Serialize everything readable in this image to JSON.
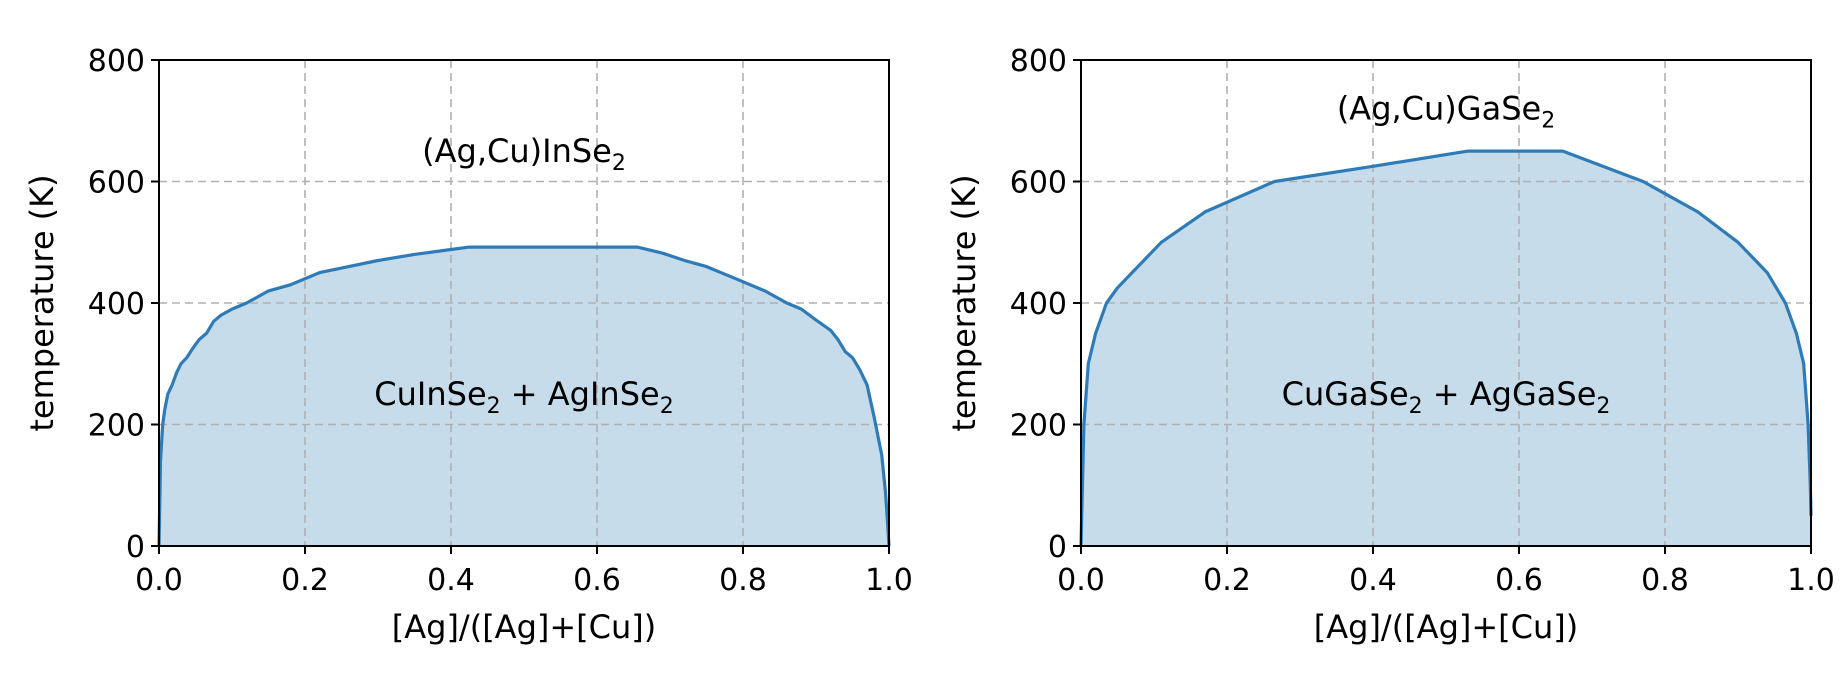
{
  "chart_data": [
    {
      "type": "area",
      "xlabel": "[Ag]/([Ag]+[Cu])",
      "ylabel": "temperature (K)",
      "xlim": [
        0.0,
        1.0
      ],
      "ylim": [
        0,
        800
      ],
      "xticks": [
        0.0,
        0.2,
        0.4,
        0.6,
        0.8,
        1.0
      ],
      "xtick_labels": [
        "0.0",
        "0.2",
        "0.4",
        "0.6",
        "0.8",
        "1.0"
      ],
      "yticks": [
        0,
        200,
        400,
        600,
        800
      ],
      "ytick_labels": [
        "0",
        "200",
        "400",
        "600",
        "800"
      ],
      "grid": true,
      "line_color": "#2f7bb8",
      "fill_color": "#c6dcea",
      "upper_label": {
        "main": "(Ag,Cu)InSe",
        "sub": "2",
        "tail": "",
        "x": 0.5,
        "y": 650
      },
      "lower_label": {
        "parts": [
          {
            "text": "CuInSe",
            "sub": false
          },
          {
            "text": "2",
            "sub": true
          },
          {
            "text": " + AgInSe",
            "sub": false
          },
          {
            "text": "2",
            "sub": true
          }
        ],
        "x": 0.5,
        "y": 250
      },
      "series": [
        {
          "x": [
            0.0,
            0.002,
            0.005,
            0.008,
            0.012,
            0.018,
            0.024,
            0.03,
            0.038,
            0.046,
            0.055,
            0.065,
            0.075,
            0.085,
            0.1,
            0.12,
            0.15,
            0.18,
            0.22,
            0.26,
            0.3,
            0.35,
            0.4,
            0.425,
            0.5,
            0.6,
            0.655,
            0.69,
            0.72,
            0.75,
            0.79,
            0.83,
            0.86,
            0.88,
            0.9,
            0.92,
            0.93,
            0.94,
            0.95,
            0.96,
            0.97,
            0.98,
            0.99,
            0.995,
            0.998,
            1.0
          ],
          "y": [
            0,
            140,
            200,
            225,
            250,
            265,
            285,
            300,
            310,
            325,
            340,
            350,
            370,
            380,
            390,
            400,
            420,
            430,
            450,
            460,
            470,
            480,
            488,
            492,
            492,
            492,
            492,
            482,
            470,
            460,
            440,
            420,
            400,
            390,
            372,
            355,
            340,
            320,
            310,
            290,
            265,
            210,
            150,
            90,
            40,
            0
          ]
        }
      ]
    },
    {
      "type": "area",
      "xlabel": "[Ag]/([Ag]+[Cu])",
      "ylabel": "temperature (K)",
      "xlim": [
        0.0,
        1.0
      ],
      "ylim": [
        0,
        800
      ],
      "xticks": [
        0.0,
        0.2,
        0.4,
        0.6,
        0.8,
        1.0
      ],
      "xtick_labels": [
        "0.0",
        "0.2",
        "0.4",
        "0.6",
        "0.8",
        "1.0"
      ],
      "yticks": [
        0,
        200,
        400,
        600,
        800
      ],
      "ytick_labels": [
        "0",
        "200",
        "400",
        "600",
        "800"
      ],
      "grid": true,
      "line_color": "#2f7bb8",
      "fill_color": "#c6dcea",
      "upper_label": {
        "main": "(Ag,Cu)GaSe",
        "sub": "2",
        "tail": "",
        "x": 0.5,
        "y": 720
      },
      "lower_label": {
        "parts": [
          {
            "text": "CuGaSe",
            "sub": false
          },
          {
            "text": "2",
            "sub": true
          },
          {
            "text": " + AgGaSe",
            "sub": false
          },
          {
            "text": "2",
            "sub": true
          }
        ],
        "x": 0.5,
        "y": 250
      },
      "series": [
        {
          "x": [
            0.0,
            0.001,
            0.004,
            0.01,
            0.02,
            0.035,
            0.05,
            0.07,
            0.11,
            0.17,
            0.265,
            0.4,
            0.53,
            0.66,
            0.77,
            0.845,
            0.9,
            0.94,
            0.965,
            0.98,
            0.99,
            0.996,
            0.999,
            1.0
          ],
          "y": [
            0,
            50,
            200,
            300,
            350,
            400,
            425,
            450,
            500,
            550,
            600,
            625,
            650,
            650,
            600,
            550,
            500,
            450,
            400,
            350,
            300,
            200,
            100,
            50
          ]
        }
      ]
    }
  ]
}
